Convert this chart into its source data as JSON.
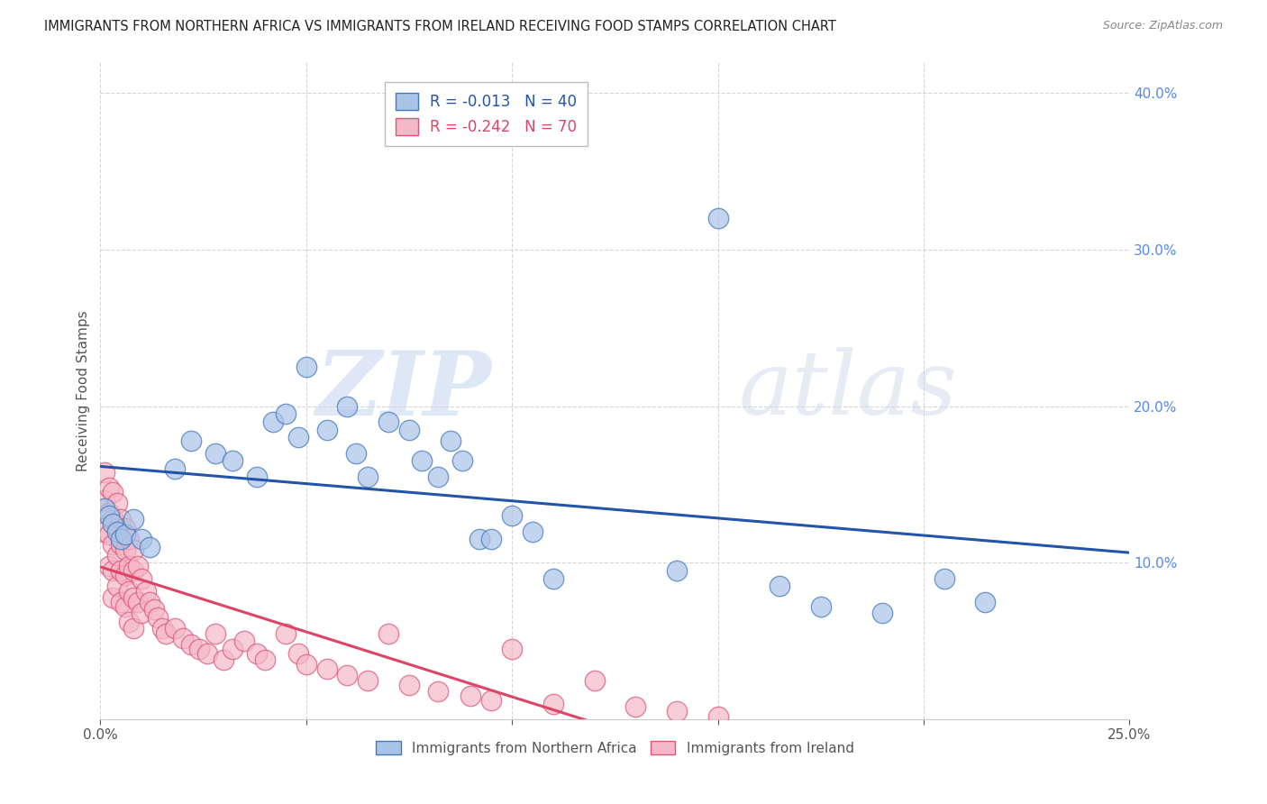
{
  "title": "IMMIGRANTS FROM NORTHERN AFRICA VS IMMIGRANTS FROM IRELAND RECEIVING FOOD STAMPS CORRELATION CHART",
  "source": "Source: ZipAtlas.com",
  "ylabel": "Receiving Food Stamps",
  "xaxis_label_blue": "Immigrants from Northern Africa",
  "xaxis_label_pink": "Immigrants from Ireland",
  "legend_blue_r": "R = -0.013",
  "legend_blue_n": "N = 40",
  "legend_pink_r": "R = -0.242",
  "legend_pink_n": "N = 70",
  "xlim": [
    0.0,
    0.25
  ],
  "ylim": [
    0.0,
    0.42
  ],
  "xticks": [
    0.0,
    0.05,
    0.1,
    0.15,
    0.2,
    0.25
  ],
  "yticks_right": [
    0.1,
    0.2,
    0.3,
    0.4
  ],
  "grid_color": "#cccccc",
  "background_color": "#ffffff",
  "blue_face_color": "#aac4e8",
  "pink_face_color": "#f5b8c8",
  "blue_edge_color": "#4477bb",
  "pink_edge_color": "#dd5577",
  "blue_line_color": "#2255aa",
  "pink_line_color": "#dd4466",
  "watermark_color": "#ddeeff",
  "right_axis_color": "#5588ee",
  "title_color": "#222222",
  "source_color": "#888888",
  "blue_x": [
    0.001,
    0.002,
    0.003,
    0.004,
    0.005,
    0.006,
    0.008,
    0.01,
    0.012,
    0.018,
    0.022,
    0.028,
    0.032,
    0.038,
    0.042,
    0.045,
    0.048,
    0.05,
    0.055,
    0.06,
    0.062,
    0.065,
    0.07,
    0.075,
    0.078,
    0.082,
    0.085,
    0.088,
    0.092,
    0.095,
    0.1,
    0.105,
    0.11,
    0.14,
    0.15,
    0.165,
    0.175,
    0.19,
    0.205,
    0.215
  ],
  "blue_y": [
    0.135,
    0.13,
    0.125,
    0.12,
    0.115,
    0.118,
    0.128,
    0.115,
    0.11,
    0.16,
    0.178,
    0.17,
    0.165,
    0.155,
    0.19,
    0.195,
    0.18,
    0.225,
    0.185,
    0.2,
    0.17,
    0.155,
    0.19,
    0.185,
    0.165,
    0.155,
    0.178,
    0.165,
    0.115,
    0.115,
    0.13,
    0.12,
    0.09,
    0.095,
    0.32,
    0.085,
    0.072,
    0.068,
    0.09,
    0.075
  ],
  "pink_x": [
    0.001,
    0.001,
    0.001,
    0.002,
    0.002,
    0.002,
    0.002,
    0.003,
    0.003,
    0.003,
    0.003,
    0.003,
    0.004,
    0.004,
    0.004,
    0.004,
    0.005,
    0.005,
    0.005,
    0.005,
    0.006,
    0.006,
    0.006,
    0.006,
    0.007,
    0.007,
    0.007,
    0.007,
    0.008,
    0.008,
    0.008,
    0.008,
    0.009,
    0.009,
    0.01,
    0.01,
    0.011,
    0.012,
    0.013,
    0.014,
    0.015,
    0.016,
    0.018,
    0.02,
    0.022,
    0.024,
    0.026,
    0.028,
    0.03,
    0.032,
    0.035,
    0.038,
    0.04,
    0.045,
    0.048,
    0.05,
    0.055,
    0.06,
    0.065,
    0.07,
    0.075,
    0.082,
    0.09,
    0.095,
    0.1,
    0.11,
    0.12,
    0.13,
    0.14,
    0.15
  ],
  "pink_y": [
    0.158,
    0.14,
    0.12,
    0.148,
    0.132,
    0.118,
    0.098,
    0.145,
    0.128,
    0.112,
    0.095,
    0.078,
    0.138,
    0.122,
    0.105,
    0.085,
    0.128,
    0.112,
    0.095,
    0.075,
    0.122,
    0.108,
    0.092,
    0.072,
    0.115,
    0.098,
    0.082,
    0.062,
    0.108,
    0.095,
    0.078,
    0.058,
    0.098,
    0.075,
    0.09,
    0.068,
    0.082,
    0.075,
    0.07,
    0.065,
    0.058,
    0.055,
    0.058,
    0.052,
    0.048,
    0.045,
    0.042,
    0.055,
    0.038,
    0.045,
    0.05,
    0.042,
    0.038,
    0.055,
    0.042,
    0.035,
    0.032,
    0.028,
    0.025,
    0.055,
    0.022,
    0.018,
    0.015,
    0.012,
    0.045,
    0.01,
    0.025,
    0.008,
    0.005,
    0.002
  ]
}
